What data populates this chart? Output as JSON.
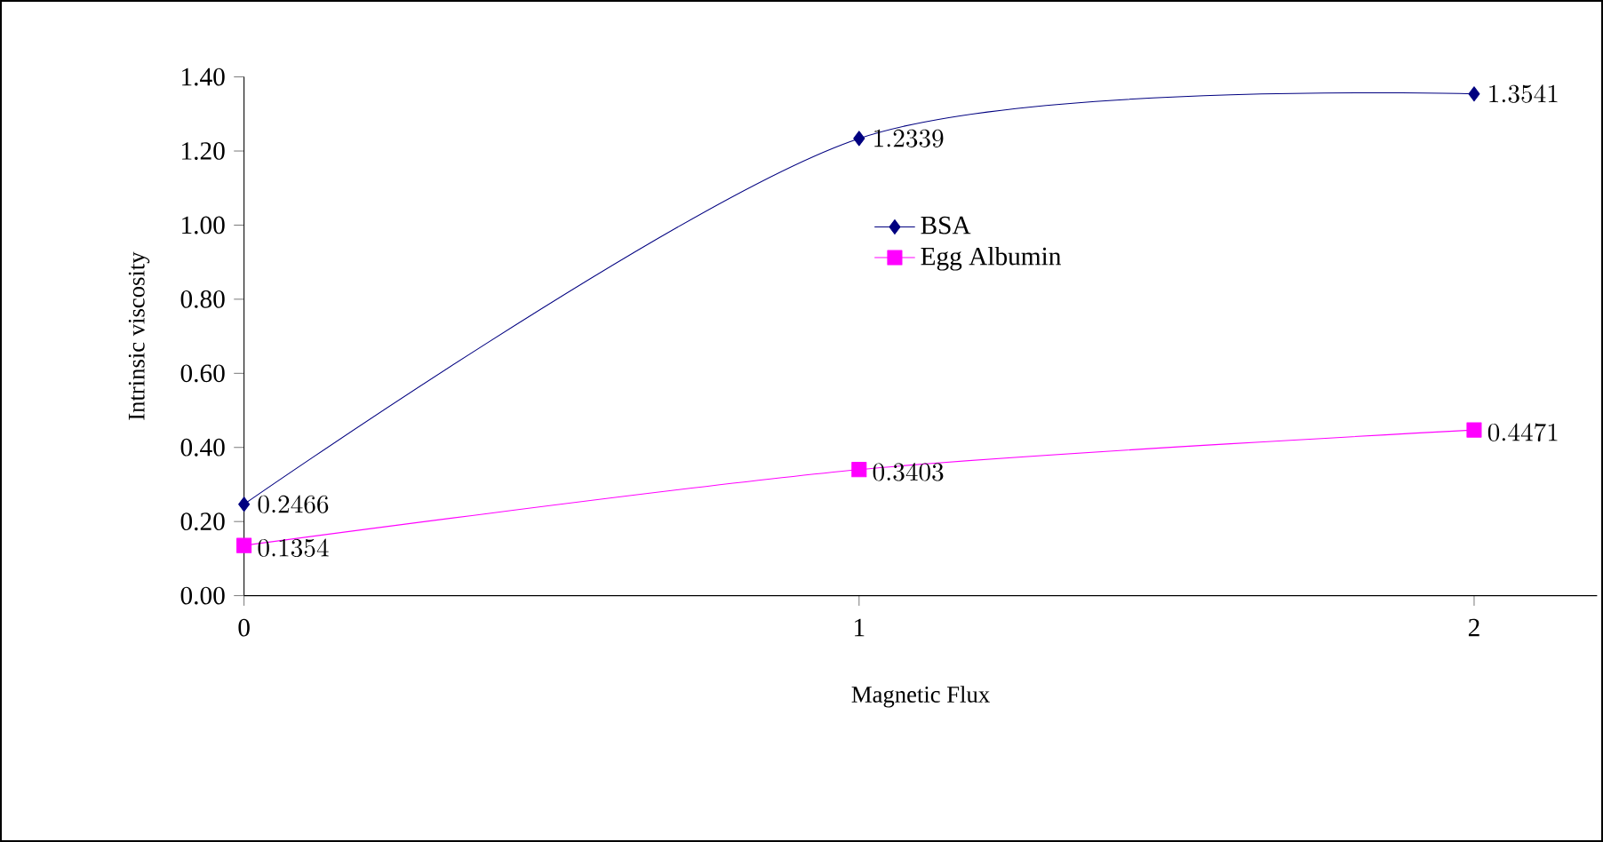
{
  "chart_data": {
    "type": "line",
    "xlabel": "Magnetic Flux",
    "ylabel": "Intrinsic viscosity",
    "x": [
      0,
      1,
      2
    ],
    "xlim": [
      0,
      2.2
    ],
    "xticks": [
      0,
      1,
      2
    ],
    "ylim": [
      0,
      1.4
    ],
    "yticks": [
      {
        "value": 0,
        "label": "0.00"
      },
      {
        "value": 0.2,
        "label": "0.20"
      },
      {
        "value": 0.4,
        "label": "0.40"
      },
      {
        "value": 0.6,
        "label": "0.60"
      },
      {
        "value": 0.8,
        "label": "0.80"
      },
      {
        "value": 1.0,
        "label": "1.00"
      },
      {
        "value": 1.2,
        "label": "1.20"
      },
      {
        "value": 1.4,
        "label": "1.40"
      }
    ],
    "series": [
      {
        "name": "BSA",
        "color": "#000080",
        "values": [
          0.2466,
          1.2339,
          1.3541
        ],
        "marker": "diamond"
      },
      {
        "name": "Egg Albumin",
        "color": "#ff00ff",
        "values": [
          0.1354,
          0.3403,
          0.4471
        ],
        "marker": "square"
      }
    ],
    "data_labels": true,
    "legend": "center",
    "grid": false
  }
}
